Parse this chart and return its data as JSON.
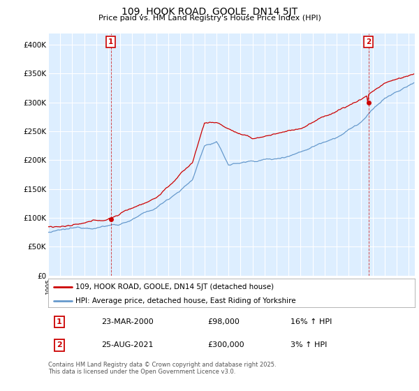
{
  "title": "109, HOOK ROAD, GOOLE, DN14 5JT",
  "subtitle": "Price paid vs. HM Land Registry's House Price Index (HPI)",
  "ylim": [
    0,
    420000
  ],
  "yticks": [
    0,
    50000,
    100000,
    150000,
    200000,
    250000,
    300000,
    350000,
    400000
  ],
  "ytick_labels": [
    "£0",
    "£50K",
    "£100K",
    "£150K",
    "£200K",
    "£250K",
    "£300K",
    "£350K",
    "£400K"
  ],
  "background_color": "#ffffff",
  "plot_bg_color": "#ddeeff",
  "grid_color": "#ffffff",
  "red_line_color": "#cc0000",
  "blue_line_color": "#6699cc",
  "point1_date": "23-MAR-2000",
  "point1_price": 98000,
  "point1_hpi": "16% ↑ HPI",
  "point1_year": 2000.21,
  "point2_date": "25-AUG-2021",
  "point2_price": 300000,
  "point2_hpi": "3% ↑ HPI",
  "point2_year": 2021.64,
  "legend_line1": "109, HOOK ROAD, GOOLE, DN14 5JT (detached house)",
  "legend_line2": "HPI: Average price, detached house, East Riding of Yorkshire",
  "footer": "Contains HM Land Registry data © Crown copyright and database right 2025.\nThis data is licensed under the Open Government Licence v3.0."
}
